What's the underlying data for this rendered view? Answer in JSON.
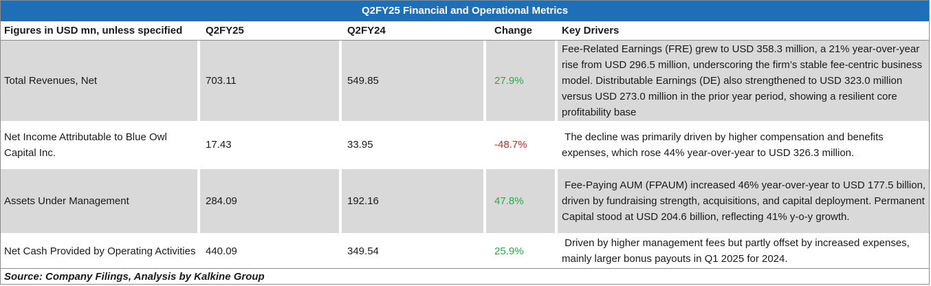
{
  "table": {
    "title": "Q2FY25 Financial and Operational Metrics",
    "headers": {
      "metric": "Figures in USD mn, unless specified",
      "current": "Q2FY25",
      "prior": "Q2FY24",
      "change": "Change",
      "drivers": "Key Drivers"
    },
    "rows": [
      {
        "metric": "Total Revenues, Net",
        "current": "703.11",
        "prior": "549.85",
        "change": "27.9%",
        "drivers": "Fee-Related Earnings (FRE) grew to USD 358.3 million, a 21% year-over-year rise from USD 296.5 million, underscoring the firm’s stable fee-centric business model. Distributable Earnings (DE) also strengthened to USD 323.0 million versus USD 273.0 million in the prior year period, showing a resilient core profitability base"
      },
      {
        "metric": "Net Income Attributable to Blue Owl Capital Inc.",
        "current": "17.43",
        "prior": "33.95",
        "change": "-48.7%",
        "drivers": " The decline was primarily driven by higher compensation and benefits expenses, which rose 44% year-over-year to USD 326.3 million."
      },
      {
        "metric": "Assets Under Management",
        "current": "284.09",
        "prior": "192.16",
        "change": "47.8%",
        "drivers": " Fee-Paying AUM (FPAUM) increased 46% year-over-year to USD 177.5 billion, driven by fundraising strength, acquisitions, and capital deployment. Permanent Capital stood at USD 204.6 billion, reflecting 41% y-o-y growth."
      },
      {
        "metric": "Net Cash Provided by Operating Activities",
        "current": "440.09",
        "prior": "349.54",
        "change": "25.9%",
        "drivers": " Driven by higher management fees but partly offset by increased expenses, mainly larger bonus payouts in Q1 2025 for 2024."
      }
    ],
    "source": "Source: Company Filings, Analysis by Kalkine Group"
  },
  "colors": {
    "title_bg": "#1f6fb8",
    "shade": "#d9d9d9",
    "positive": "#2aa84a",
    "negative": "#e02020"
  }
}
